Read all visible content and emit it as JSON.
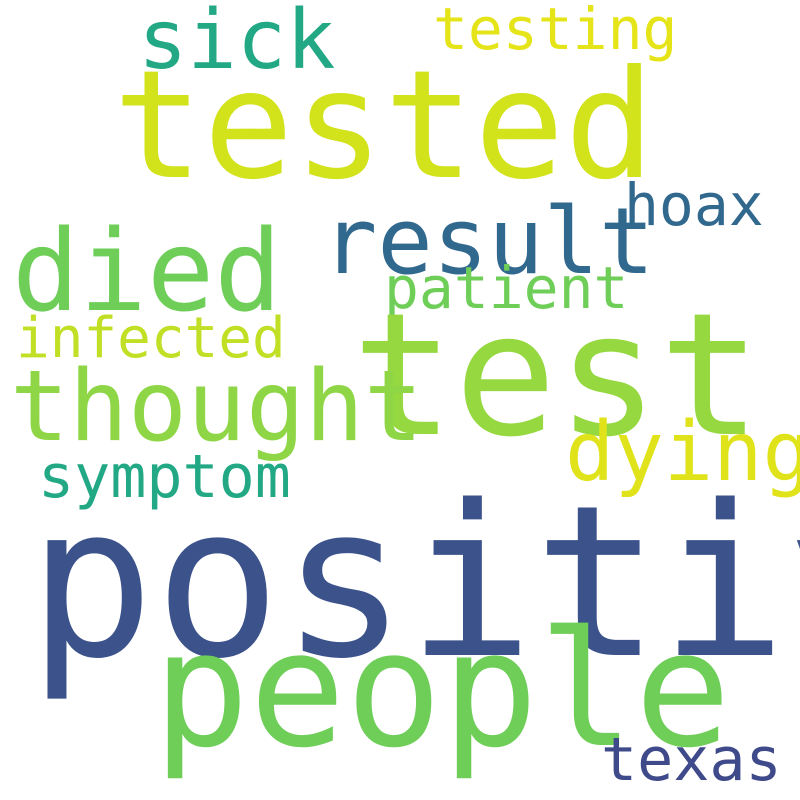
{
  "words": {
    "positive": {
      "text": "positive",
      "color": "#3b528b"
    },
    "test": {
      "text": "test",
      "color": "#95d840"
    },
    "tested": {
      "text": "tested",
      "color": "#d2e21b"
    },
    "people": {
      "text": "people",
      "color": "#6ece58"
    },
    "died": {
      "text": "died",
      "color": "#6ece58"
    },
    "thought": {
      "text": "thought",
      "color": "#8ed645"
    },
    "result": {
      "text": "result",
      "color": "#31688e"
    },
    "sick": {
      "text": "sick",
      "color": "#22a884"
    },
    "dying": {
      "text": "dying",
      "color": "#e0e31a"
    },
    "patient": {
      "text": "patient",
      "color": "#6ece58"
    },
    "infected": {
      "text": "infected",
      "color": "#c0df25"
    },
    "symptom": {
      "text": "symptom",
      "color": "#22a884"
    },
    "hoax": {
      "text": "hoax",
      "color": "#31688e"
    },
    "testing": {
      "text": "testing",
      "color": "#e5e419"
    },
    "texas": {
      "text": "texas",
      "color": "#3e4a89"
    }
  }
}
